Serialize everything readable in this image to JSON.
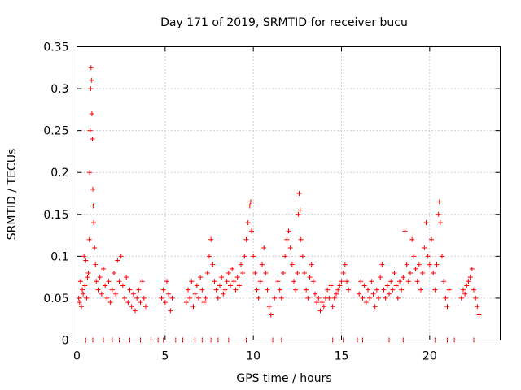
{
  "chart_data": {
    "type": "scatter",
    "title": "Day 171 of 2019, SRMTID for receiver bucu",
    "xlabel": "GPS time / hours",
    "ylabel": "SRMTID / TECUs",
    "xlim": [
      0,
      24
    ],
    "ylim": [
      0,
      0.35
    ],
    "xticks": [
      0,
      5,
      10,
      15,
      20
    ],
    "yticks": [
      0,
      0.05,
      0.1,
      0.15,
      0.2,
      0.25,
      0.3,
      0.35
    ],
    "xtick_labels": [
      "0",
      "5",
      "10",
      "15",
      "20"
    ],
    "ytick_labels": [
      "0",
      "0.05",
      "0.1",
      "0.15",
      "0.2",
      "0.25",
      "0.3",
      "0.35"
    ],
    "grid": true,
    "marker": "+",
    "color": "#ff0000",
    "series": [
      {
        "name": "SRMTID",
        "points": [
          [
            0.1,
            0.05
          ],
          [
            0.15,
            0.045
          ],
          [
            0.2,
            0.07
          ],
          [
            0.25,
            0.04
          ],
          [
            0.3,
            0.06
          ],
          [
            0.35,
            0.055
          ],
          [
            0.4,
            0.1
          ],
          [
            0.45,
            0.065
          ],
          [
            0.5,
            0.095
          ],
          [
            0.55,
            0.05
          ],
          [
            0.6,
            0.075
          ],
          [
            0.65,
            0.08
          ],
          [
            0.7,
            0.12
          ],
          [
            0.72,
            0.2
          ],
          [
            0.75,
            0.25
          ],
          [
            0.78,
            0.3
          ],
          [
            0.8,
            0.325
          ],
          [
            0.82,
            0.31
          ],
          [
            0.85,
            0.27
          ],
          [
            0.88,
            0.24
          ],
          [
            0.9,
            0.18
          ],
          [
            0.92,
            0.16
          ],
          [
            0.95,
            0.14
          ],
          [
            1.0,
            0.11
          ],
          [
            1.05,
            0.09
          ],
          [
            1.1,
            0.07
          ],
          [
            1.2,
            0.06
          ],
          [
            1.3,
            0.075
          ],
          [
            1.4,
            0.055
          ],
          [
            1.5,
            0.085
          ],
          [
            1.6,
            0.065
          ],
          [
            1.7,
            0.05
          ],
          [
            1.8,
            0.07
          ],
          [
            1.9,
            0.045
          ],
          [
            2.0,
            0.06
          ],
          [
            2.1,
            0.08
          ],
          [
            2.2,
            0.055
          ],
          [
            2.3,
            0.095
          ],
          [
            2.4,
            0.07
          ],
          [
            2.5,
            0.1
          ],
          [
            2.6,
            0.065
          ],
          [
            2.7,
            0.05
          ],
          [
            2.8,
            0.075
          ],
          [
            2.9,
            0.045
          ],
          [
            3.0,
            0.06
          ],
          [
            3.1,
            0.04
          ],
          [
            3.2,
            0.055
          ],
          [
            3.3,
            0.035
          ],
          [
            3.4,
            0.05
          ],
          [
            3.5,
            0.06
          ],
          [
            3.6,
            0.045
          ],
          [
            3.7,
            0.07
          ],
          [
            3.8,
            0.05
          ],
          [
            3.9,
            0.04
          ],
          [
            4.8,
            0.05
          ],
          [
            4.9,
            0.06
          ],
          [
            5.0,
            0.045
          ],
          [
            5.1,
            0.07
          ],
          [
            5.2,
            0.055
          ],
          [
            5.3,
            0.035
          ],
          [
            5.4,
            0.05
          ],
          [
            6.2,
            0.045
          ],
          [
            6.3,
            0.06
          ],
          [
            6.4,
            0.05
          ],
          [
            6.5,
            0.07
          ],
          [
            6.6,
            0.04
          ],
          [
            6.7,
            0.055
          ],
          [
            6.8,
            0.065
          ],
          [
            6.9,
            0.05
          ],
          [
            7.0,
            0.075
          ],
          [
            7.1,
            0.06
          ],
          [
            7.2,
            0.045
          ],
          [
            7.3,
            0.05
          ],
          [
            7.4,
            0.08
          ],
          [
            7.5,
            0.1
          ],
          [
            7.6,
            0.12
          ],
          [
            7.7,
            0.09
          ],
          [
            7.8,
            0.07
          ],
          [
            7.9,
            0.06
          ],
          [
            8.0,
            0.05
          ],
          [
            8.1,
            0.065
          ],
          [
            8.2,
            0.075
          ],
          [
            8.3,
            0.055
          ],
          [
            8.4,
            0.06
          ],
          [
            8.5,
            0.07
          ],
          [
            8.6,
            0.08
          ],
          [
            8.7,
            0.065
          ],
          [
            8.8,
            0.085
          ],
          [
            8.9,
            0.07
          ],
          [
            9.0,
            0.06
          ],
          [
            9.1,
            0.075
          ],
          [
            9.2,
            0.065
          ],
          [
            9.3,
            0.09
          ],
          [
            9.4,
            0.08
          ],
          [
            9.5,
            0.1
          ],
          [
            9.6,
            0.12
          ],
          [
            9.7,
            0.14
          ],
          [
            9.8,
            0.16
          ],
          [
            9.85,
            0.165
          ],
          [
            9.9,
            0.13
          ],
          [
            10.0,
            0.1
          ],
          [
            10.1,
            0.08
          ],
          [
            10.2,
            0.06
          ],
          [
            10.3,
            0.05
          ],
          [
            10.4,
            0.07
          ],
          [
            10.5,
            0.09
          ],
          [
            10.6,
            0.11
          ],
          [
            10.7,
            0.08
          ],
          [
            10.8,
            0.06
          ],
          [
            10.9,
            0.04
          ],
          [
            11.0,
            0.03
          ],
          [
            11.2,
            0.05
          ],
          [
            11.4,
            0.07
          ],
          [
            11.5,
            0.06
          ],
          [
            11.6,
            0.05
          ],
          [
            11.7,
            0.08
          ],
          [
            11.8,
            0.1
          ],
          [
            11.9,
            0.12
          ],
          [
            12.0,
            0.13
          ],
          [
            12.1,
            0.11
          ],
          [
            12.2,
            0.09
          ],
          [
            12.3,
            0.07
          ],
          [
            12.4,
            0.06
          ],
          [
            12.5,
            0.08
          ],
          [
            12.55,
            0.15
          ],
          [
            12.6,
            0.175
          ],
          [
            12.65,
            0.155
          ],
          [
            12.7,
            0.12
          ],
          [
            12.8,
            0.1
          ],
          [
            12.9,
            0.08
          ],
          [
            13.0,
            0.06
          ],
          [
            13.1,
            0.05
          ],
          [
            13.2,
            0.075
          ],
          [
            13.3,
            0.09
          ],
          [
            13.4,
            0.07
          ],
          [
            13.5,
            0.055
          ],
          [
            13.6,
            0.045
          ],
          [
            13.7,
            0.05
          ],
          [
            13.8,
            0.035
          ],
          [
            13.9,
            0.045
          ],
          [
            14.0,
            0.04
          ],
          [
            14.1,
            0.05
          ],
          [
            14.2,
            0.06
          ],
          [
            14.3,
            0.05
          ],
          [
            14.4,
            0.065
          ],
          [
            14.5,
            0.04
          ],
          [
            14.6,
            0.05
          ],
          [
            14.7,
            0.055
          ],
          [
            14.8,
            0.06
          ],
          [
            14.9,
            0.065
          ],
          [
            15.0,
            0.07
          ],
          [
            15.1,
            0.08
          ],
          [
            15.2,
            0.09
          ],
          [
            15.3,
            0.07
          ],
          [
            15.4,
            0.06
          ],
          [
            16.0,
            0.055
          ],
          [
            16.1,
            0.07
          ],
          [
            16.2,
            0.05
          ],
          [
            16.3,
            0.065
          ],
          [
            16.4,
            0.045
          ],
          [
            16.5,
            0.06
          ],
          [
            16.6,
            0.05
          ],
          [
            16.7,
            0.07
          ],
          [
            16.8,
            0.055
          ],
          [
            16.9,
            0.04
          ],
          [
            17.0,
            0.06
          ],
          [
            17.1,
            0.05
          ],
          [
            17.2,
            0.075
          ],
          [
            17.3,
            0.09
          ],
          [
            17.4,
            0.06
          ],
          [
            17.5,
            0.05
          ],
          [
            17.6,
            0.065
          ],
          [
            17.7,
            0.055
          ],
          [
            17.8,
            0.07
          ],
          [
            17.9,
            0.06
          ],
          [
            18.0,
            0.08
          ],
          [
            18.1,
            0.065
          ],
          [
            18.2,
            0.05
          ],
          [
            18.3,
            0.07
          ],
          [
            18.4,
            0.06
          ],
          [
            18.5,
            0.075
          ],
          [
            18.6,
            0.13
          ],
          [
            18.7,
            0.09
          ],
          [
            18.8,
            0.07
          ],
          [
            18.9,
            0.08
          ],
          [
            19.0,
            0.12
          ],
          [
            19.1,
            0.1
          ],
          [
            19.2,
            0.085
          ],
          [
            19.3,
            0.07
          ],
          [
            19.4,
            0.09
          ],
          [
            19.5,
            0.06
          ],
          [
            19.6,
            0.08
          ],
          [
            19.7,
            0.11
          ],
          [
            19.8,
            0.14
          ],
          [
            19.9,
            0.1
          ],
          [
            20.0,
            0.09
          ],
          [
            20.1,
            0.12
          ],
          [
            20.2,
            0.08
          ],
          [
            20.3,
            0.06
          ],
          [
            20.4,
            0.09
          ],
          [
            20.5,
            0.15
          ],
          [
            20.55,
            0.165
          ],
          [
            20.6,
            0.14
          ],
          [
            20.7,
            0.1
          ],
          [
            20.8,
            0.07
          ],
          [
            20.9,
            0.05
          ],
          [
            21.0,
            0.04
          ],
          [
            21.1,
            0.06
          ],
          [
            21.8,
            0.05
          ],
          [
            21.9,
            0.06
          ],
          [
            22.0,
            0.055
          ],
          [
            22.1,
            0.065
          ],
          [
            22.2,
            0.07
          ],
          [
            22.3,
            0.075
          ],
          [
            22.4,
            0.085
          ],
          [
            22.5,
            0.06
          ],
          [
            22.6,
            0.05
          ],
          [
            22.7,
            0.04
          ],
          [
            22.8,
            0.03
          ],
          [
            0.5,
            0
          ],
          [
            0.9,
            0
          ],
          [
            1.5,
            0
          ],
          [
            2.0,
            0
          ],
          [
            2.4,
            0
          ],
          [
            3.0,
            0
          ],
          [
            3.6,
            0
          ],
          [
            4.2,
            0
          ],
          [
            4.6,
            0
          ],
          [
            4.9,
            0
          ],
          [
            5.6,
            0
          ],
          [
            6.0,
            0
          ],
          [
            6.7,
            0
          ],
          [
            7.1,
            0
          ],
          [
            7.6,
            0
          ],
          [
            8.0,
            0
          ],
          [
            8.6,
            0
          ],
          [
            9.6,
            0
          ],
          [
            11.1,
            0
          ],
          [
            11.6,
            0
          ],
          [
            14.5,
            0
          ],
          [
            15.1,
            0
          ],
          [
            15.9,
            0
          ],
          [
            16.2,
            0
          ],
          [
            17.7,
            0
          ],
          [
            18.5,
            0
          ],
          [
            20.3,
            0
          ],
          [
            21.0,
            0
          ],
          [
            21.4,
            0
          ],
          [
            22.5,
            0
          ]
        ]
      }
    ]
  }
}
